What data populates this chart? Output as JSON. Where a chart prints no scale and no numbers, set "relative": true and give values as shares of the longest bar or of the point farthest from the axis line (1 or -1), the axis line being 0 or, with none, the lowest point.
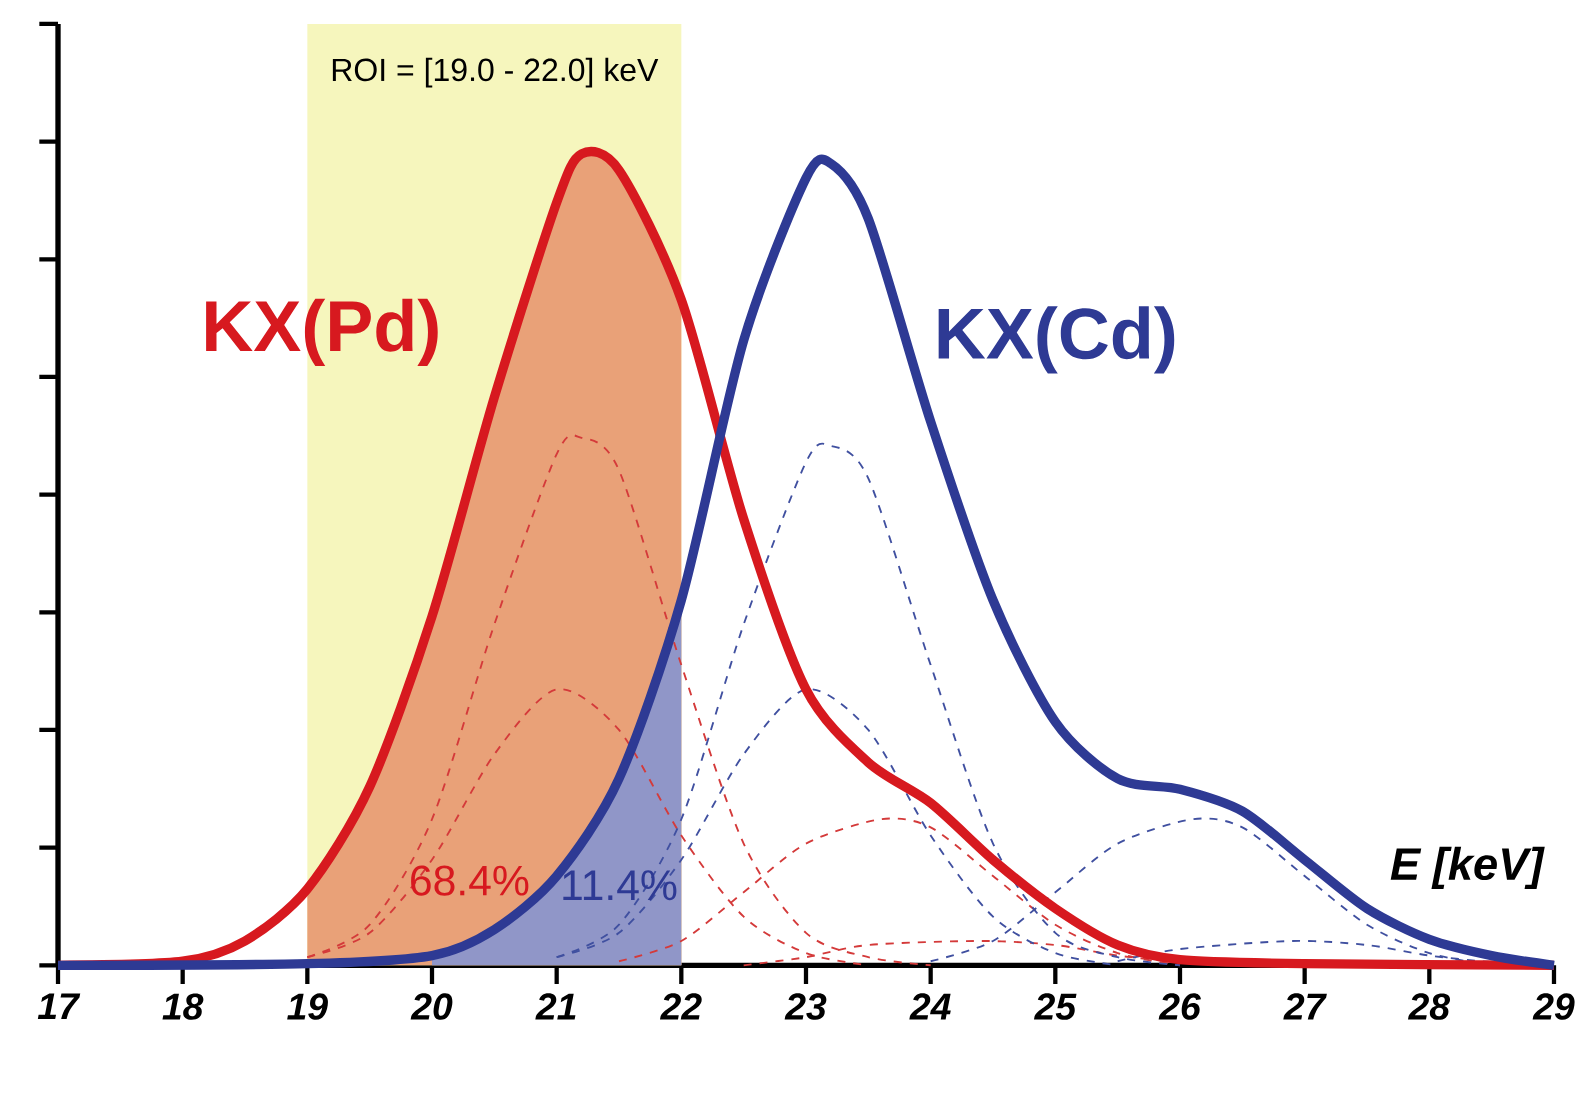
{
  "chart_data": {
    "type": "line",
    "relative": true,
    "xlabel": "E [keV]",
    "xlim": [
      17,
      29
    ],
    "xticks": [
      17,
      18,
      19,
      20,
      21,
      22,
      23,
      24,
      25,
      26,
      27,
      28,
      29
    ],
    "tick_labels": "x",
    "bands": [
      {
        "axis": "x",
        "from": 19.0,
        "to": 22.0,
        "label": "ROI = [19.0 - 22.0] keV",
        "color": "#f6f6bd"
      }
    ],
    "annotations": [
      "68.4%",
      "11.4%"
    ],
    "series": [
      {
        "name": "KX(Pd)",
        "color": "#d7191f",
        "line_style": "solid",
        "x": [
          17,
          18,
          18.5,
          19,
          19.5,
          20,
          20.5,
          21,
          21.2,
          21.5,
          22,
          22.5,
          23,
          23.5,
          24,
          24.5,
          25,
          25.5,
          26,
          27,
          29
        ],
        "values": [
          0,
          0.005,
          0.03,
          0.094,
          0.22,
          0.43,
          0.7,
          0.94,
          1,
          0.98,
          0.82,
          0.55,
          0.34,
          0.25,
          0.2,
          0.13,
          0.07,
          0.025,
          0.007,
          0.002,
          0
        ]
      },
      {
        "name": "KX(Cd)",
        "color": "#2e3a94",
        "line_style": "solid",
        "x": [
          17,
          19,
          20,
          20.5,
          21,
          21.5,
          22,
          22.5,
          23,
          23.2,
          23.5,
          24,
          24.5,
          25,
          25.5,
          26,
          26.5,
          27,
          27.5,
          28,
          28.5,
          29
        ],
        "values": [
          0,
          0.002,
          0.012,
          0.044,
          0.11,
          0.23,
          0.45,
          0.77,
          0.97,
          0.988,
          0.92,
          0.67,
          0.45,
          0.3,
          0.23,
          0.217,
          0.19,
          0.13,
          0.07,
          0.032,
          0.012,
          0
        ]
      },
      {
        "type": "area",
        "color": "#e9a178",
        "x": [
          19,
          19.5,
          20,
          20.5,
          21,
          21.2,
          21.5,
          22
        ],
        "values": [
          0.094,
          0.22,
          0.43,
          0.7,
          0.94,
          1,
          0.98,
          0.82
        ]
      },
      {
        "type": "area",
        "color": "#9096c8",
        "x": [
          20,
          20.5,
          21,
          21.5,
          22
        ],
        "values": [
          0.012,
          0.044,
          0.11,
          0.23,
          0.45
        ]
      },
      {
        "color": "#d43a3a",
        "line_style": "dashed",
        "x": [
          19,
          19.5,
          20,
          20.5,
          21,
          21.2,
          21.5,
          22,
          22.5,
          23,
          23.5,
          24
        ],
        "values": [
          0.01,
          0.05,
          0.18,
          0.42,
          0.63,
          0.65,
          0.61,
          0.37,
          0.15,
          0.04,
          0.01,
          0
        ]
      },
      {
        "color": "#d43a3a",
        "line_style": "dashed",
        "x": [
          19,
          19.5,
          20,
          20.5,
          21,
          21.5,
          22,
          22.5,
          23,
          23.5
        ],
        "values": [
          0.01,
          0.04,
          0.13,
          0.26,
          0.34,
          0.29,
          0.16,
          0.06,
          0.015,
          0
        ]
      },
      {
        "color": "#d43a3a",
        "line_style": "dashed",
        "x": [
          21.5,
          22,
          22.5,
          23,
          23.6,
          24,
          24.5,
          25,
          25.5,
          26
        ],
        "values": [
          0.005,
          0.03,
          0.09,
          0.15,
          0.18,
          0.17,
          0.11,
          0.05,
          0.015,
          0
        ]
      },
      {
        "color": "#d43a3a",
        "line_style": "dashed",
        "x": [
          22.5,
          23,
          23.5,
          24.4,
          25,
          25.5,
          26,
          26.5
        ],
        "values": [
          0,
          0.01,
          0.025,
          0.03,
          0.025,
          0.012,
          0.004,
          0
        ]
      },
      {
        "color": "#4050a0",
        "line_style": "dashed",
        "x": [
          21,
          21.5,
          22,
          22.5,
          23,
          23.2,
          23.5,
          24,
          24.5,
          25,
          25.5,
          26
        ],
        "values": [
          0.01,
          0.05,
          0.18,
          0.42,
          0.62,
          0.64,
          0.6,
          0.37,
          0.15,
          0.04,
          0.01,
          0
        ]
      },
      {
        "color": "#4050a0",
        "line_style": "dashed",
        "x": [
          21,
          21.5,
          22,
          22.5,
          23,
          23.5,
          24,
          24.5,
          25,
          25.5
        ],
        "values": [
          0.01,
          0.04,
          0.13,
          0.26,
          0.34,
          0.29,
          0.16,
          0.06,
          0.015,
          0
        ]
      },
      {
        "color": "#4050a0",
        "line_style": "dashed",
        "x": [
          24,
          24.5,
          25,
          25.5,
          26.1,
          26.5,
          27,
          27.5,
          28,
          28.5
        ],
        "values": [
          0.005,
          0.03,
          0.09,
          0.15,
          0.18,
          0.17,
          0.11,
          0.05,
          0.015,
          0
        ]
      },
      {
        "color": "#4050a0",
        "line_style": "dashed",
        "x": [
          25.5,
          26,
          26.9,
          27.5,
          28,
          28.5,
          29
        ],
        "values": [
          0.005,
          0.02,
          0.03,
          0.025,
          0.012,
          0.004,
          0
        ]
      }
    ]
  }
}
